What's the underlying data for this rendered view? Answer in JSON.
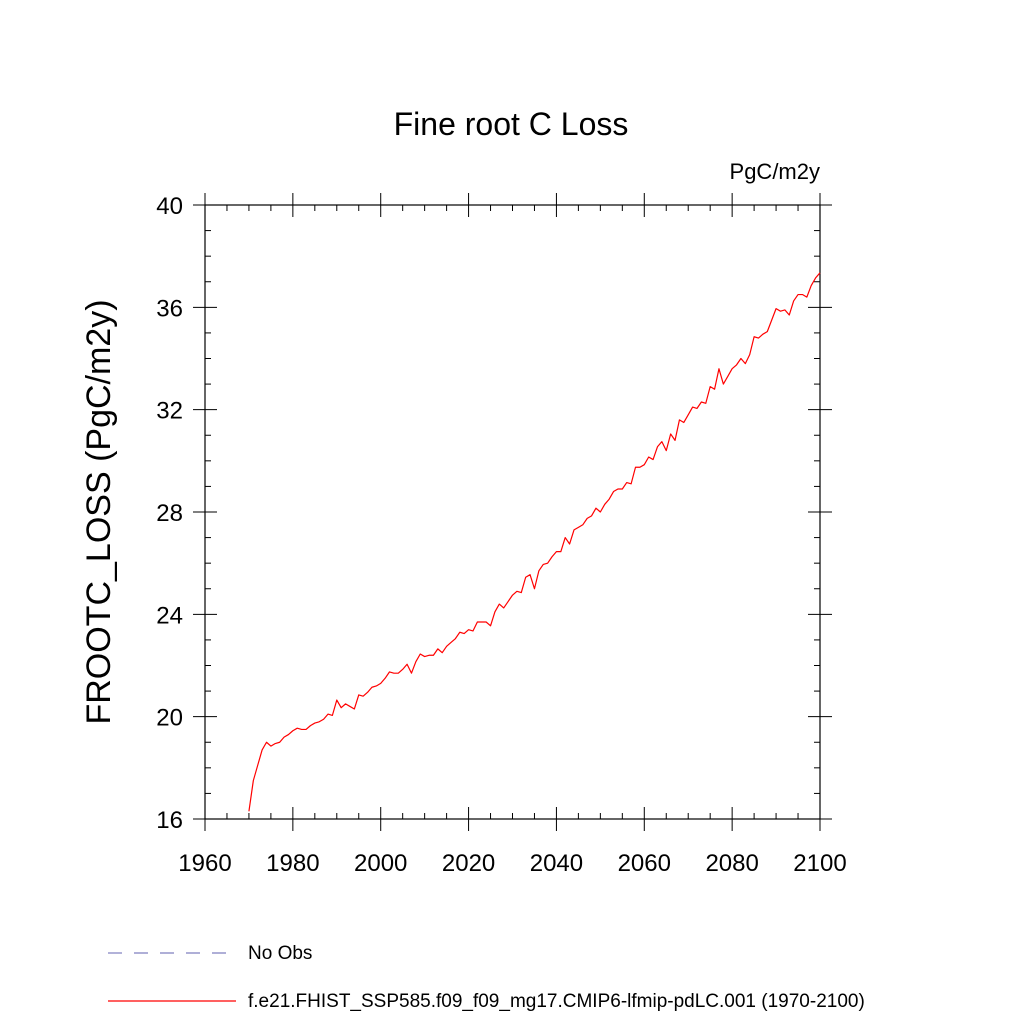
{
  "chart_data": {
    "type": "line",
    "title": "Fine root C Loss",
    "units_label": "PgC/m2y",
    "xlabel": "",
    "ylabel": "FROOTC_LOSS  (PgC/m2y)",
    "xlim": [
      1960,
      2100
    ],
    "ylim": [
      16,
      40
    ],
    "x_ticks": [
      1960,
      1980,
      2000,
      2020,
      2040,
      2060,
      2080,
      2100
    ],
    "y_ticks": [
      16,
      20,
      24,
      28,
      32,
      36,
      40
    ],
    "grid": false,
    "legend_position": "bottom",
    "legend": [
      {
        "label": "No Obs",
        "color": "#7f7fbf",
        "style": "dashed"
      },
      {
        "label": "f.e21.FHIST_SSP585.f09_f09_mg17.CMIP6-lfmip-pdLC.001 (1970-2100)",
        "color": "#ff0000",
        "style": "solid"
      }
    ],
    "series": [
      {
        "color": "#ff0000",
        "x_start": 1970,
        "x_step": 1,
        "values": [
          16.3,
          17.5,
          18.1,
          18.7,
          19.0,
          18.85,
          18.95,
          19.0,
          19.2,
          19.3,
          19.45,
          19.55,
          19.5,
          19.5,
          19.65,
          19.75,
          19.8,
          19.9,
          20.1,
          20.05,
          20.65,
          20.35,
          20.5,
          20.4,
          20.3,
          20.85,
          20.8,
          20.95,
          21.15,
          21.2,
          21.3,
          21.5,
          21.75,
          21.7,
          21.7,
          21.85,
          22.05,
          21.7,
          22.15,
          22.45,
          22.35,
          22.4,
          22.4,
          22.65,
          22.5,
          22.75,
          22.9,
          23.05,
          23.3,
          23.25,
          23.4,
          23.35,
          23.7,
          23.7,
          23.7,
          23.55,
          24.1,
          24.4,
          24.25,
          24.5,
          24.75,
          24.9,
          24.85,
          25.45,
          25.55,
          25.0,
          25.7,
          25.95,
          26.0,
          26.25,
          26.45,
          26.45,
          27.0,
          26.75,
          27.3,
          27.4,
          27.5,
          27.75,
          27.85,
          28.15,
          28.0,
          28.3,
          28.5,
          28.8,
          28.9,
          28.9,
          29.15,
          29.1,
          29.75,
          29.75,
          29.85,
          30.15,
          30.05,
          30.55,
          30.75,
          30.4,
          31.05,
          30.8,
          31.6,
          31.5,
          31.8,
          32.1,
          32.05,
          32.3,
          32.25,
          32.9,
          32.8,
          33.6,
          33.0,
          33.3,
          33.6,
          33.75,
          34.0,
          33.8,
          34.15,
          34.85,
          34.8,
          34.95,
          35.05,
          35.5,
          35.95,
          35.85,
          35.9,
          35.7,
          36.25,
          36.5,
          36.5,
          36.4,
          36.85,
          37.15,
          37.35
        ]
      }
    ]
  }
}
